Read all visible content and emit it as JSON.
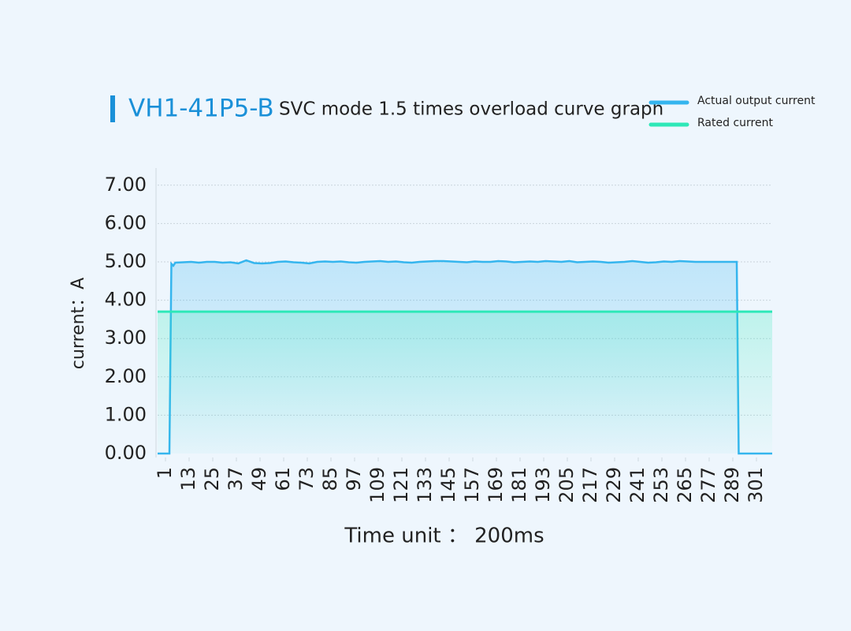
{
  "chart_data": {
    "type": "line",
    "title": "VH1-41P5-B",
    "subtitle": "SVC mode 1.5 times overload curve graph",
    "x_label": "Time unit ： 200ms",
    "y_label": "current：A",
    "xlim": [
      -3,
      309
    ],
    "xticks": [
      1,
      13,
      25,
      37,
      49,
      61,
      73,
      85,
      97,
      109,
      121,
      133,
      145,
      157,
      169,
      181,
      193,
      205,
      217,
      229,
      241,
      253,
      265,
      277,
      289,
      301
    ],
    "ylim": [
      0,
      7.4
    ],
    "yticks": [
      {
        "value": 0,
        "label": "0.00"
      },
      {
        "value": 1,
        "label": "1.00"
      },
      {
        "value": 2,
        "label": "2.00"
      },
      {
        "value": 3,
        "label": "3.00"
      },
      {
        "value": 4,
        "label": "4.00"
      },
      {
        "value": 5,
        "label": "5.00"
      },
      {
        "value": 6,
        "label": "6.00"
      },
      {
        "value": 7,
        "label": "7.00"
      }
    ],
    "grid": true,
    "legend": "top-right",
    "series": [
      {
        "name": "Actual output current",
        "color": "#35b5ee",
        "x": [
          -3,
          1,
          3,
          4,
          5,
          6,
          10,
          14,
          18,
          22,
          26,
          30,
          34,
          38,
          42,
          46,
          50,
          54,
          58,
          62,
          66,
          70,
          74,
          78,
          82,
          86,
          90,
          94,
          98,
          102,
          106,
          110,
          114,
          118,
          122,
          126,
          130,
          134,
          138,
          142,
          146,
          150,
          154,
          158,
          162,
          166,
          170,
          174,
          178,
          182,
          186,
          190,
          194,
          198,
          202,
          206,
          210,
          214,
          218,
          222,
          226,
          230,
          234,
          238,
          242,
          246,
          250,
          254,
          258,
          262,
          266,
          270,
          274,
          278,
          282,
          286,
          290,
          291,
          292,
          300,
          309
        ],
        "values": [
          0,
          0,
          0,
          4.95,
          4.9,
          4.98,
          4.99,
          5.0,
          4.98,
          5.0,
          5.0,
          4.98,
          4.99,
          4.96,
          5.04,
          4.97,
          4.96,
          4.97,
          5.0,
          5.01,
          4.99,
          4.98,
          4.96,
          5.0,
          5.01,
          5.0,
          5.01,
          4.99,
          4.98,
          5.0,
          5.01,
          5.02,
          5.0,
          5.01,
          4.99,
          4.98,
          5.0,
          5.01,
          5.02,
          5.02,
          5.01,
          5.0,
          4.99,
          5.01,
          5.0,
          5.0,
          5.02,
          5.01,
          4.99,
          5.0,
          5.01,
          5.0,
          5.02,
          5.01,
          5.0,
          5.02,
          4.99,
          5.0,
          5.01,
          5.0,
          4.98,
          4.99,
          5.0,
          5.02,
          5.0,
          4.98,
          4.99,
          5.01,
          5.0,
          5.02,
          5.01,
          5.0,
          5.0,
          5.0,
          5.0,
          5.0,
          5.0,
          5.0,
          0,
          0,
          0
        ]
      },
      {
        "name": "Rated current",
        "color": "#2ee8b8",
        "x": [
          -3,
          309
        ],
        "values": [
          3.7,
          3.7
        ]
      }
    ]
  }
}
